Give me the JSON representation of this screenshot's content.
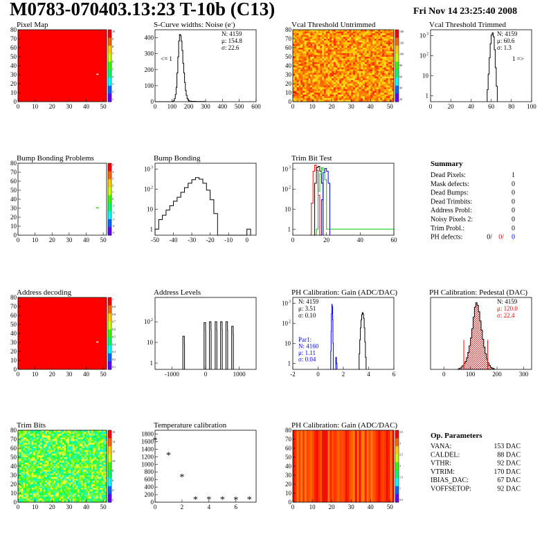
{
  "header": {
    "title": "M0783-070403.13:23 T-10b (C13)",
    "date": "Fri Nov 14 23:25:40 2008"
  },
  "colors": {
    "red": "#ff0000",
    "blue": "#0000ff",
    "green": "#00cc00",
    "black": "#000000",
    "pedestal_hatch": "#cc0000"
  },
  "summary": {
    "title": "Summary",
    "rows": [
      {
        "label": "Dead Pixels:",
        "value": "1"
      },
      {
        "label": "Mask defects:",
        "value": "0"
      },
      {
        "label": "Dead Bumps:",
        "value": "0"
      },
      {
        "label": "Dead Trimbits:",
        "value": "0"
      },
      {
        "label": "Address Probl:",
        "value": "0"
      },
      {
        "label": "Noisy Pixels 2:",
        "value": "0"
      },
      {
        "label": "Trim Probl.:",
        "value": "0"
      }
    ],
    "ph_label": "PH defects:",
    "ph_values": [
      "0/",
      "0/",
      "0"
    ]
  },
  "op_params": {
    "title": "Op. Parameters",
    "rows": [
      {
        "label": "VANA:",
        "value": "153 DAC"
      },
      {
        "label": "CALDEL:",
        "value": "88 DAC"
      },
      {
        "label": "VTHR:",
        "value": "92 DAC"
      },
      {
        "label": "VTRIM:",
        "value": "170 DAC"
      },
      {
        "label": "IBIAS_DAC:",
        "value": "67 DAC"
      },
      {
        "label": "VOFFSETOP:",
        "value": "92 DAC"
      }
    ]
  },
  "chart_data": [
    {
      "id": "pixel_map",
      "type": "heatmap",
      "title": "Pixel Map",
      "xlim": [
        0,
        52
      ],
      "ylim": [
        0,
        80
      ],
      "xticks": [
        0,
        10,
        20,
        30,
        40,
        50
      ],
      "yticks": [
        0,
        10,
        20,
        30,
        40,
        50,
        60,
        70,
        80
      ],
      "fill": "uniform-max",
      "palette_ticks": [
        "10",
        "9",
        "8",
        "7",
        "6",
        "5",
        "4",
        "3",
        "2",
        "1"
      ],
      "markers": [
        {
          "x": 46,
          "y": 31,
          "color": "#ffffff"
        }
      ]
    },
    {
      "id": "scurve",
      "type": "histogram",
      "title": "S-Curve widths: Noise (e",
      "title_sup": "-",
      "title_end": ")",
      "xlim": [
        0,
        600
      ],
      "ylim": [
        0,
        450
      ],
      "xticks": [
        0,
        100,
        200,
        300,
        400,
        500,
        600
      ],
      "yticks": [
        0,
        100,
        200,
        300,
        400
      ],
      "stats": [
        "N: 4159",
        "μ: 154.8",
        "σ: 22.6"
      ],
      "annotation": "<= 1",
      "bins": [
        [
          0,
          0
        ],
        [
          100,
          0
        ],
        [
          105,
          3
        ],
        [
          110,
          8
        ],
        [
          115,
          20
        ],
        [
          120,
          45
        ],
        [
          125,
          90
        ],
        [
          130,
          180
        ],
        [
          135,
          280
        ],
        [
          140,
          380
        ],
        [
          145,
          420
        ],
        [
          150,
          415
        ],
        [
          155,
          380
        ],
        [
          160,
          320
        ],
        [
          165,
          240
        ],
        [
          170,
          180
        ],
        [
          175,
          120
        ],
        [
          180,
          70
        ],
        [
          185,
          40
        ],
        [
          190,
          20
        ],
        [
          195,
          10
        ],
        [
          200,
          5
        ],
        [
          205,
          3
        ],
        [
          215,
          2
        ],
        [
          240,
          1
        ],
        [
          290,
          1
        ],
        [
          300,
          0
        ]
      ]
    },
    {
      "id": "vcal_untrimmed",
      "type": "heatmap",
      "title": "Vcal Threshold Untrimmed",
      "xlim": [
        0,
        52
      ],
      "ylim": [
        0,
        80
      ],
      "xticks": [
        0,
        10,
        20,
        30,
        40,
        50
      ],
      "yticks": [
        0,
        10,
        20,
        30,
        40,
        50,
        60,
        70,
        80
      ],
      "fill": "noisy-orange",
      "palette_ticks": [
        "140",
        "120",
        "100",
        "80",
        "60",
        "40",
        "20"
      ]
    },
    {
      "id": "vcal_trimmed",
      "type": "histogram",
      "title": "Vcal Threshold Trimmed",
      "xlim": [
        0,
        100
      ],
      "ylim": [
        0.5,
        2000
      ],
      "log": true,
      "xticks": [
        0,
        20,
        40,
        60,
        80,
        100
      ],
      "yticks": [
        1,
        10,
        100,
        1000
      ],
      "stats": [
        "N: 4159",
        "μ: 60.6",
        "σ:  1.3"
      ],
      "annotation": "1 =>",
      "bins": [
        [
          56,
          2
        ],
        [
          57,
          12
        ],
        [
          58,
          80
        ],
        [
          59,
          400
        ],
        [
          60,
          1100
        ],
        [
          61,
          1400
        ],
        [
          62,
          900
        ],
        [
          63,
          200
        ],
        [
          64,
          25
        ],
        [
          65,
          3
        ],
        [
          66,
          0
        ]
      ]
    },
    {
      "id": "bump_problems",
      "type": "heatmap",
      "title": "Bump Bonding Problems",
      "xlim": [
        0,
        52
      ],
      "ylim": [
        0,
        80
      ],
      "xticks": [
        0,
        10,
        20,
        30,
        40,
        50
      ],
      "yticks": [
        0,
        10,
        20,
        30,
        40,
        50,
        60,
        70,
        80
      ],
      "fill": "white",
      "palette_ticks": [
        "5",
        "4",
        "3",
        "2",
        "1",
        "0",
        "-1",
        "-2",
        "-3",
        "-4",
        "-5"
      ],
      "markers": [
        {
          "x": 46,
          "y": 31,
          "color": "#00cc00"
        }
      ]
    },
    {
      "id": "bump_bonding",
      "type": "histogram",
      "title": "Bump Bonding",
      "xlim": [
        -50,
        5
      ],
      "ylim": [
        0.5,
        2000
      ],
      "log": true,
      "xticks": [
        -50,
        -40,
        -30,
        -20,
        -10,
        0
      ],
      "yticks": [
        1,
        10,
        100,
        1000
      ],
      "bins": [
        [
          -50,
          1
        ],
        [
          -48,
          3
        ],
        [
          -46,
          5
        ],
        [
          -44,
          9
        ],
        [
          -42,
          15
        ],
        [
          -40,
          25
        ],
        [
          -38,
          40
        ],
        [
          -36,
          70
        ],
        [
          -34,
          120
        ],
        [
          -32,
          200
        ],
        [
          -30,
          300
        ],
        [
          -28,
          380
        ],
        [
          -26,
          320
        ],
        [
          -24,
          200
        ],
        [
          -22,
          90
        ],
        [
          -20,
          30
        ],
        [
          -18,
          6
        ],
        [
          -16,
          0
        ],
        [
          0,
          1
        ],
        [
          2,
          0
        ]
      ]
    },
    {
      "id": "trim_bit",
      "type": "histogram",
      "title": "Trim Bit Test",
      "xlim": [
        0,
        60
      ],
      "ylim": [
        0.5,
        2000
      ],
      "log": true,
      "xticks": [
        0,
        20,
        40,
        60
      ],
      "yticks": [
        1,
        10,
        100,
        1000
      ],
      "multi": [
        {
          "color": "#ff0000",
          "bins": [
            [
              10,
              0
            ],
            [
              11,
              20
            ],
            [
              12,
              800
            ],
            [
              13,
              1600
            ],
            [
              14,
              900
            ],
            [
              15,
              50
            ],
            [
              16,
              0
            ]
          ]
        },
        {
          "color": "#000000",
          "bins": [
            [
              12,
              0
            ],
            [
              13,
              200
            ],
            [
              14,
              1200
            ],
            [
              15,
              1400
            ],
            [
              16,
              800
            ],
            [
              17,
              200
            ],
            [
              18,
              0
            ]
          ]
        },
        {
          "color": "#00cc00",
          "bins": [
            [
              13,
              0
            ],
            [
              14,
              1
            ],
            [
              15,
              80
            ],
            [
              16,
              600
            ],
            [
              17,
              1200
            ],
            [
              18,
              900
            ],
            [
              19,
              300
            ],
            [
              20,
              1
            ],
            [
              60,
              0
            ]
          ]
        },
        {
          "color": "#0000ff",
          "bins": [
            [
              16,
              0
            ],
            [
              17,
              30
            ],
            [
              18,
              700
            ],
            [
              19,
              1100
            ],
            [
              20,
              800
            ],
            [
              21,
              200
            ],
            [
              22,
              0
            ]
          ]
        }
      ]
    },
    {
      "id": "address_decoding",
      "type": "heatmap",
      "title": "Address decoding",
      "xlim": [
        0,
        52
      ],
      "ylim": [
        0,
        80
      ],
      "xticks": [
        0,
        10,
        20,
        30,
        40,
        50
      ],
      "yticks": [
        0,
        10,
        20,
        30,
        40,
        50,
        60,
        70,
        80
      ],
      "fill": "uniform-max",
      "palette_ticks": [
        "1",
        "0.9",
        "0.8",
        "0.7",
        "0.6",
        "0.5",
        "0.4",
        "0.3",
        "0.2",
        "0.1"
      ],
      "markers": [
        {
          "x": 46,
          "y": 31,
          "color": "#ffffff"
        }
      ]
    },
    {
      "id": "address_levels",
      "type": "histogram",
      "title": "Address Levels",
      "xlim": [
        -1500,
        1500
      ],
      "ylim": [
        0.5,
        1500
      ],
      "log": true,
      "xticks": [
        -1000,
        0,
        1000
      ],
      "yticks": [
        1,
        10,
        100
      ],
      "peaks": [
        [
          -650,
          20,
          50
        ],
        [
          -20,
          90,
          50
        ],
        [
          140,
          100,
          50
        ],
        [
          310,
          100,
          50
        ],
        [
          470,
          100,
          50
        ],
        [
          630,
          100,
          50
        ],
        [
          800,
          60,
          50
        ]
      ]
    },
    {
      "id": "ph_gain",
      "type": "histogram",
      "title": "PH Calibration: Gain (ADC/DAC)",
      "xlim": [
        -2,
        6
      ],
      "ylim": [
        0.5,
        2000
      ],
      "log": true,
      "xticks": [
        -2,
        0,
        2,
        4,
        6
      ],
      "yticks": [
        1,
        10,
        100,
        1000
      ],
      "stats": [
        "N: 4159",
        "μ: 3.51",
        "σ: 0.10"
      ],
      "par": [
        "Par1:",
        "N: 4160",
        "μ: 1.11",
        "σ: 0.04"
      ],
      "multi": [
        {
          "color": "#000000",
          "bins": [
            [
              3.2,
              0
            ],
            [
              3.25,
              3
            ],
            [
              3.3,
              15
            ],
            [
              3.35,
              60
            ],
            [
              3.4,
              150
            ],
            [
              3.45,
              280
            ],
            [
              3.5,
              350
            ],
            [
              3.55,
              300
            ],
            [
              3.6,
              180
            ],
            [
              3.65,
              60
            ],
            [
              3.7,
              12
            ],
            [
              3.75,
              2
            ],
            [
              3.8,
              0
            ]
          ]
        },
        {
          "color": "#0000ff",
          "bins": [
            [
              0.95,
              0
            ],
            [
              1.0,
              4
            ],
            [
              1.03,
              40
            ],
            [
              1.06,
              300
            ],
            [
              1.09,
              900
            ],
            [
              1.12,
              700
            ],
            [
              1.15,
              150
            ],
            [
              1.18,
              10
            ],
            [
              1.21,
              0
            ],
            [
              1.4,
              2
            ],
            [
              1.45,
              1
            ],
            [
              1.5,
              0
            ]
          ]
        }
      ]
    },
    {
      "id": "ph_pedestal",
      "type": "histogram",
      "title": "PH Calibration: Pedestal (DAC)",
      "xlim": [
        -50,
        330
      ],
      "ylim": [
        0,
        110
      ],
      "xticks": [
        0,
        100,
        200,
        300
      ],
      "yticks": [],
      "stats": [
        "N: 4159",
        "μ: 120.0",
        "σ: 22.4"
      ],
      "bins": [
        [
          50,
          0
        ],
        [
          55,
          1
        ],
        [
          60,
          2
        ],
        [
          65,
          4
        ],
        [
          70,
          6
        ],
        [
          75,
          9
        ],
        [
          80,
          12
        ],
        [
          85,
          18
        ],
        [
          90,
          26
        ],
        [
          95,
          36
        ],
        [
          100,
          48
        ],
        [
          105,
          62
        ],
        [
          110,
          80
        ],
        [
          115,
          95
        ],
        [
          120,
          102
        ],
        [
          125,
          98
        ],
        [
          130,
          88
        ],
        [
          135,
          74
        ],
        [
          140,
          60
        ],
        [
          145,
          46
        ],
        [
          150,
          34
        ],
        [
          155,
          24
        ],
        [
          160,
          16
        ],
        [
          165,
          10
        ],
        [
          170,
          6
        ],
        [
          175,
          3
        ],
        [
          180,
          2
        ],
        [
          185,
          1
        ],
        [
          190,
          0
        ]
      ],
      "lines": [
        [
          75,
          45
        ],
        [
          165,
          45
        ]
      ]
    },
    {
      "id": "trim_bits",
      "type": "heatmap",
      "title": "Trim Bits",
      "xlim": [
        0,
        52
      ],
      "ylim": [
        0,
        80
      ],
      "xticks": [
        0,
        10,
        20,
        30,
        40,
        50
      ],
      "yticks": [
        0,
        10,
        20,
        30,
        40,
        50,
        60,
        70,
        80
      ],
      "fill": "noisy-green",
      "palette_ticks": [
        "16",
        "14",
        "12",
        "10",
        "8",
        "6",
        "4",
        "2"
      ]
    },
    {
      "id": "temperature",
      "type": "scatter",
      "title": "Temperature calibration",
      "xlim": [
        0,
        7.5
      ],
      "ylim": [
        0,
        1900
      ],
      "xticks": [
        0,
        2,
        4,
        6
      ],
      "yticks": [
        0,
        200,
        400,
        600,
        800,
        1000,
        1200,
        1400,
        1600,
        1800
      ],
      "x": [
        0,
        1,
        2,
        3,
        4,
        5,
        6,
        7
      ],
      "y": [
        1660,
        1270,
        690,
        100,
        100,
        100,
        90,
        100
      ]
    },
    {
      "id": "ph_gain_map",
      "type": "heatmap",
      "title": "PH Calibration: Gain (ADC/DAC)",
      "xlim": [
        0,
        52
      ],
      "ylim": [
        0,
        80
      ],
      "xticks": [
        0,
        10,
        20,
        30,
        40,
        50
      ],
      "yticks": [
        0,
        10,
        20,
        30,
        40,
        50,
        60,
        70,
        80
      ],
      "fill": "column-stripes",
      "palette_ticks": [
        "3.5",
        "3",
        "2.5",
        "2",
        "1.5",
        "1",
        "0.5"
      ]
    }
  ]
}
